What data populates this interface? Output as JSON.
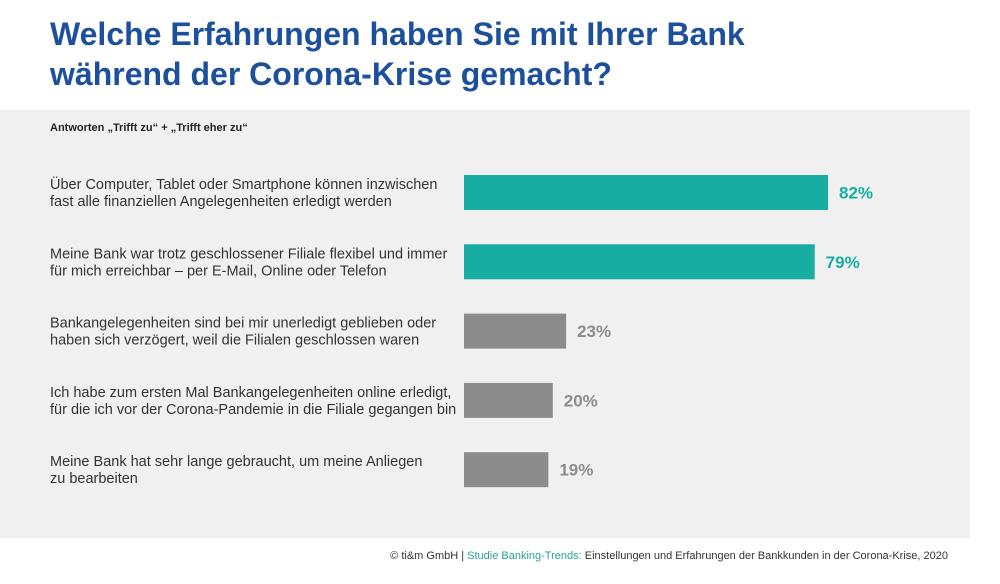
{
  "page": {
    "title_lines": [
      "Welche Erfahrungen haben Sie mit Ihrer Bank",
      "während der Corona-Krise gemacht?"
    ],
    "subtitle": "Antworten „Trifft zu“ + „Trifft eher zu“",
    "footer": {
      "copyright": "© ti&m GmbH | ",
      "source": "Studie Banking-Trends:",
      "description": " Einstellungen und Erfahrungen der Bankkunden in der Corona-Krise, 2020"
    }
  },
  "colors": {
    "highlight": "#17ada3",
    "neutral": "#8c8c8c",
    "title": "#1c4f9c",
    "panel": "#f0f0f0"
  },
  "chart_data": {
    "type": "bar",
    "orientation": "horizontal",
    "title": "Welche Erfahrungen haben Sie mit Ihrer Bank während der Corona-Krise gemacht?",
    "subtitle": "Antworten „Trifft zu“ + „Trifft eher zu“",
    "xlim": [
      0,
      100
    ],
    "grid": false,
    "legend": "none",
    "categories": [
      [
        "Über Computer, Tablet oder Smartphone können inzwischen",
        "fast alle finanziellen Angelegenheiten erledigt werden"
      ],
      [
        "Meine Bank war trotz geschlossener Filiale flexibel und immer",
        "für mich erreichbar – per E-Mail, Online oder Telefon"
      ],
      [
        "Bankangelegenheiten sind bei mir unerledigt geblieben oder",
        "haben sich verzögert, weil die Filialen geschlossen waren"
      ],
      [
        "Ich habe zum ersten Mal Bankangelegenheiten online erledigt,",
        "für die ich vor der Corona-Pandemie in die Filiale gegangen bin"
      ],
      [
        "Meine Bank hat sehr lange gebraucht, um meine Anliegen",
        "zu bearbeiten"
      ]
    ],
    "values": [
      82,
      79,
      23,
      20,
      19
    ],
    "value_labels": [
      "82%",
      "79%",
      "23%",
      "20%",
      "19%"
    ],
    "bar_colors": [
      "#17ada3",
      "#17ada3",
      "#8c8c8c",
      "#8c8c8c",
      "#8c8c8c"
    ]
  }
}
